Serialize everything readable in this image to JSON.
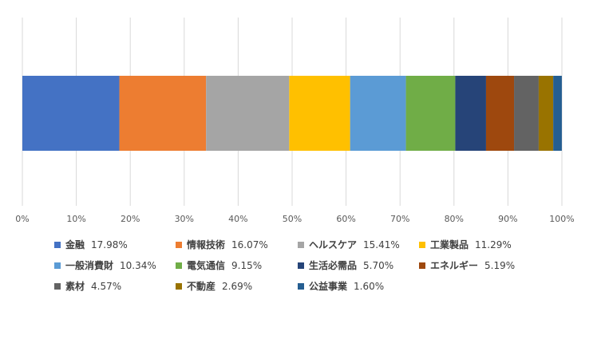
{
  "chart_data": {
    "type": "bar",
    "orientation": "horizontal",
    "stacking": "percent",
    "categories": [
      ""
    ],
    "series": [
      {
        "name": "金融",
        "value": 17.98,
        "label": "17.98%",
        "color": "#4472C4"
      },
      {
        "name": "情報技術",
        "value": 16.07,
        "label": "16.07%",
        "color": "#ED7D31"
      },
      {
        "name": "ヘルスケア",
        "value": 15.41,
        "label": "15.41%",
        "color": "#A5A5A5"
      },
      {
        "name": "工業製品",
        "value": 11.29,
        "label": "11.29%",
        "color": "#FFC000"
      },
      {
        "name": "一般消費財",
        "value": 10.34,
        "label": "10.34%",
        "color": "#5B9BD5"
      },
      {
        "name": "電気通信",
        "value": 9.15,
        "label": "9.15%",
        "color": "#70AD47"
      },
      {
        "name": "生活必需品",
        "value": 5.7,
        "label": "5.70%",
        "color": "#264478"
      },
      {
        "name": "エネルギー",
        "value": 5.19,
        "label": "5.19%",
        "color": "#9E480E"
      },
      {
        "name": "素材",
        "value": 4.57,
        "label": "4.57%",
        "color": "#636363"
      },
      {
        "name": "不動産",
        "value": 2.69,
        "label": "2.69%",
        "color": "#997300"
      },
      {
        "name": "公益事業",
        "value": 1.6,
        "label": "1.60%",
        "color": "#255E91"
      }
    ],
    "x_ticks": [
      "0%",
      "10%",
      "20%",
      "30%",
      "40%",
      "50%",
      "60%",
      "70%",
      "80%",
      "90%",
      "100%"
    ],
    "xlim": [
      0,
      100
    ],
    "grid": true,
    "legend_position": "bottom"
  }
}
